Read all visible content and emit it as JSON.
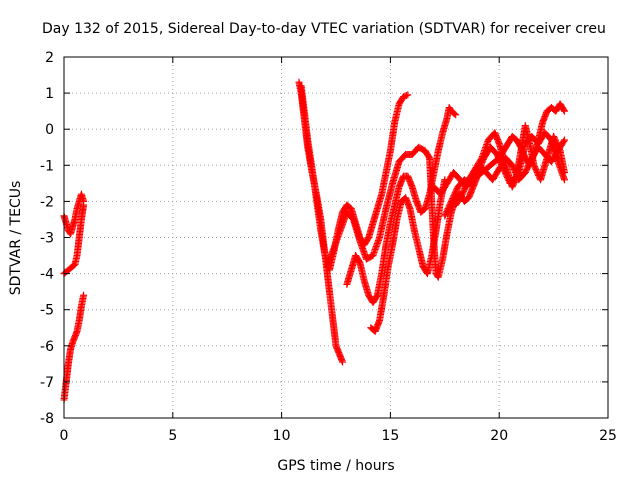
{
  "chart_data": {
    "type": "scatter",
    "title": "Day 132 of 2015, Sidereal Day-to-day VTEC variation (SDTVAR) for receiver creu",
    "xlabel": "GPS time / hours",
    "ylabel": "SDTVAR / TECUs",
    "xlim": [
      0,
      25
    ],
    "ylim": [
      -8,
      2
    ],
    "xticks": [
      "0",
      "5",
      "10",
      "15",
      "20",
      "25"
    ],
    "yticks": [
      "-8",
      "-7",
      "-6",
      "-5",
      "-4",
      "-3",
      "-2",
      "-1",
      "0",
      "1",
      "2"
    ],
    "grid": true,
    "marker": "+",
    "color": "#ff0000",
    "series": [
      {
        "points": [
          [
            0.0,
            -2.4
          ],
          [
            0.1,
            -2.6
          ],
          [
            0.2,
            -2.8
          ],
          [
            0.3,
            -2.9
          ],
          [
            0.4,
            -2.7
          ],
          [
            0.5,
            -2.5
          ],
          [
            0.6,
            -2.2
          ],
          [
            0.7,
            -2.0
          ],
          [
            0.8,
            -1.8
          ],
          [
            0.9,
            -2.0
          ]
        ]
      },
      {
        "points": [
          [
            0.0,
            -4.0
          ],
          [
            0.1,
            -3.95
          ],
          [
            0.2,
            -3.9
          ],
          [
            0.3,
            -3.85
          ],
          [
            0.4,
            -3.8
          ],
          [
            0.5,
            -3.75
          ],
          [
            0.6,
            -3.5
          ],
          [
            0.7,
            -3.0
          ],
          [
            0.8,
            -2.5
          ],
          [
            0.9,
            -2.1
          ]
        ]
      },
      {
        "points": [
          [
            0.0,
            -7.5
          ],
          [
            0.1,
            -7.0
          ],
          [
            0.2,
            -6.5
          ],
          [
            0.3,
            -6.1
          ],
          [
            0.4,
            -5.9
          ],
          [
            0.5,
            -5.75
          ],
          [
            0.6,
            -5.6
          ],
          [
            0.7,
            -5.3
          ],
          [
            0.8,
            -4.9
          ],
          [
            0.9,
            -4.6
          ]
        ]
      },
      {
        "points": [
          [
            10.8,
            1.3
          ],
          [
            10.9,
            1.0
          ],
          [
            11.0,
            0.5
          ],
          [
            11.1,
            0.0
          ],
          [
            11.2,
            -0.5
          ],
          [
            11.4,
            -1.2
          ],
          [
            11.6,
            -1.8
          ],
          [
            11.8,
            -2.5
          ],
          [
            12.0,
            -3.5
          ],
          [
            12.1,
            -4.0
          ],
          [
            12.2,
            -4.5
          ],
          [
            12.3,
            -5.0
          ],
          [
            12.4,
            -5.5
          ],
          [
            12.5,
            -6.0
          ],
          [
            12.7,
            -6.3
          ],
          [
            12.8,
            -6.45
          ]
        ]
      },
      {
        "points": [
          [
            10.9,
            1.2
          ],
          [
            11.2,
            -0.3
          ],
          [
            11.5,
            -1.5
          ],
          [
            11.8,
            -2.8
          ],
          [
            12.0,
            -3.5
          ],
          [
            12.2,
            -3.9
          ],
          [
            12.4,
            -3.4
          ],
          [
            12.6,
            -2.8
          ],
          [
            12.8,
            -2.3
          ],
          [
            13.0,
            -2.1
          ],
          [
            13.2,
            -2.2
          ],
          [
            13.4,
            -2.6
          ],
          [
            13.6,
            -3.0
          ],
          [
            13.8,
            -3.2
          ],
          [
            14.0,
            -3.0
          ],
          [
            14.2,
            -2.6
          ],
          [
            14.4,
            -2.2
          ],
          [
            14.6,
            -1.8
          ],
          [
            14.8,
            -1.2
          ],
          [
            15.0,
            -0.6
          ],
          [
            15.2,
            0.2
          ],
          [
            15.4,
            0.7
          ],
          [
            15.6,
            0.9
          ],
          [
            15.8,
            0.95
          ]
        ]
      },
      {
        "points": [
          [
            12.1,
            -3.8
          ],
          [
            12.4,
            -3.3
          ],
          [
            12.7,
            -2.8
          ],
          [
            13.0,
            -2.3
          ],
          [
            13.3,
            -2.5
          ],
          [
            13.6,
            -3.1
          ],
          [
            13.9,
            -3.6
          ],
          [
            14.2,
            -3.5
          ],
          [
            14.5,
            -3.0
          ],
          [
            14.8,
            -2.2
          ],
          [
            15.1,
            -1.5
          ],
          [
            15.4,
            -0.9
          ],
          [
            15.7,
            -0.7
          ],
          [
            16.0,
            -0.7
          ],
          [
            16.3,
            -0.5
          ],
          [
            16.6,
            -0.6
          ],
          [
            16.8,
            -0.8
          ]
        ]
      },
      {
        "points": [
          [
            13.0,
            -4.3
          ],
          [
            13.2,
            -3.9
          ],
          [
            13.4,
            -3.5
          ],
          [
            13.6,
            -3.7
          ],
          [
            13.8,
            -4.2
          ],
          [
            14.0,
            -4.6
          ],
          [
            14.2,
            -4.8
          ],
          [
            14.4,
            -4.6
          ],
          [
            14.6,
            -4.0
          ],
          [
            14.8,
            -3.2
          ],
          [
            15.0,
            -2.6
          ],
          [
            15.2,
            -2.1
          ],
          [
            15.4,
            -1.6
          ],
          [
            15.6,
            -1.3
          ],
          [
            15.8,
            -1.3
          ],
          [
            16.0,
            -1.6
          ],
          [
            16.2,
            -2.0
          ],
          [
            16.4,
            -2.3
          ],
          [
            16.6,
            -2.2
          ],
          [
            16.8,
            -1.8
          ],
          [
            17.0,
            -1.2
          ],
          [
            17.2,
            -0.6
          ],
          [
            17.4,
            -0.1
          ],
          [
            17.6,
            0.3
          ],
          [
            17.7,
            0.6
          ],
          [
            17.8,
            0.5
          ],
          [
            18.0,
            0.4
          ]
        ]
      },
      {
        "points": [
          [
            14.1,
            -5.5
          ],
          [
            14.3,
            -5.6
          ],
          [
            14.5,
            -5.3
          ],
          [
            14.7,
            -4.6
          ],
          [
            14.9,
            -3.8
          ],
          [
            15.1,
            -3.2
          ],
          [
            15.3,
            -2.5
          ],
          [
            15.5,
            -2.0
          ],
          [
            15.7,
            -1.9
          ],
          [
            15.9,
            -2.2
          ],
          [
            16.1,
            -2.8
          ],
          [
            16.3,
            -3.3
          ],
          [
            16.5,
            -3.8
          ],
          [
            16.7,
            -4.0
          ],
          [
            16.9,
            -3.5
          ],
          [
            17.1,
            -2.8
          ],
          [
            17.3,
            -2.0
          ],
          [
            17.5,
            -1.4
          ]
        ]
      },
      {
        "points": [
          [
            16.8,
            -0.8
          ],
          [
            16.9,
            -2.0
          ],
          [
            17.0,
            -3.2
          ],
          [
            17.1,
            -4.0
          ],
          [
            17.2,
            -4.1
          ],
          [
            17.4,
            -3.6
          ],
          [
            17.6,
            -2.9
          ],
          [
            17.8,
            -2.3
          ],
          [
            18.0,
            -1.9
          ],
          [
            18.2,
            -1.8
          ],
          [
            18.4,
            -2.0
          ],
          [
            18.6,
            -1.9
          ],
          [
            18.8,
            -1.6
          ],
          [
            19.0,
            -1.3
          ],
          [
            19.2,
            -1.2
          ],
          [
            19.4,
            -1.1
          ],
          [
            19.6,
            -1.0
          ],
          [
            19.8,
            -0.9
          ],
          [
            20.0,
            -0.8
          ],
          [
            20.2,
            -0.6
          ],
          [
            20.4,
            -0.4
          ],
          [
            20.6,
            -0.2
          ],
          [
            20.8,
            -0.3
          ],
          [
            21.0,
            -0.5
          ],
          [
            21.2,
            -0.8
          ],
          [
            21.4,
            -1.0
          ],
          [
            21.6,
            -0.7
          ],
          [
            21.8,
            -0.3
          ],
          [
            22.0,
            0.2
          ],
          [
            22.2,
            0.5
          ],
          [
            22.4,
            0.6
          ],
          [
            22.6,
            0.5
          ],
          [
            22.8,
            0.7
          ],
          [
            23.0,
            0.5
          ]
        ]
      },
      {
        "points": [
          [
            17.0,
            -1.6
          ],
          [
            17.3,
            -1.8
          ],
          [
            17.6,
            -1.5
          ],
          [
            17.9,
            -1.2
          ],
          [
            18.2,
            -1.4
          ],
          [
            18.5,
            -1.6
          ],
          [
            18.8,
            -1.3
          ],
          [
            19.1,
            -1.0
          ],
          [
            19.4,
            -1.2
          ],
          [
            19.7,
            -1.4
          ],
          [
            20.0,
            -1.1
          ],
          [
            20.3,
            -0.8
          ],
          [
            20.6,
            -1.0
          ],
          [
            20.9,
            -1.4
          ],
          [
            21.2,
            -1.2
          ],
          [
            21.5,
            -0.8
          ],
          [
            21.8,
            -0.5
          ],
          [
            22.1,
            -0.7
          ],
          [
            22.4,
            -0.9
          ],
          [
            22.7,
            -0.6
          ],
          [
            23.0,
            -0.3
          ]
        ]
      },
      {
        "points": [
          [
            17.5,
            -2.4
          ],
          [
            17.8,
            -2.0
          ],
          [
            18.1,
            -1.6
          ],
          [
            18.4,
            -1.4
          ],
          [
            18.7,
            -1.5
          ],
          [
            19.0,
            -1.2
          ],
          [
            19.3,
            -0.8
          ],
          [
            19.6,
            -0.5
          ],
          [
            19.9,
            -0.7
          ],
          [
            20.2,
            -1.1
          ],
          [
            20.5,
            -1.5
          ],
          [
            20.8,
            -1.3
          ],
          [
            21.0,
            -0.6
          ],
          [
            21.2,
            0.1
          ],
          [
            21.4,
            -0.4
          ],
          [
            21.6,
            -1.0
          ],
          [
            21.9,
            -1.4
          ],
          [
            22.2,
            -0.8
          ],
          [
            22.5,
            -0.2
          ],
          [
            22.8,
            -0.6
          ],
          [
            23.0,
            -1.2
          ]
        ]
      },
      {
        "points": [
          [
            18.0,
            -2.1
          ],
          [
            18.3,
            -1.8
          ],
          [
            18.6,
            -1.4
          ],
          [
            18.9,
            -1.1
          ],
          [
            19.2,
            -0.8
          ],
          [
            19.5,
            -0.3
          ],
          [
            19.8,
            -0.1
          ],
          [
            20.0,
            -0.4
          ],
          [
            20.3,
            -1.0
          ],
          [
            20.6,
            -1.6
          ],
          [
            20.9,
            -1.2
          ],
          [
            21.2,
            -0.4
          ],
          [
            21.5,
            -0.2
          ],
          [
            21.8,
            -0.4
          ],
          [
            22.1,
            -0.1
          ],
          [
            22.4,
            -0.3
          ],
          [
            22.7,
            -0.9
          ],
          [
            23.0,
            -1.4
          ]
        ]
      }
    ]
  }
}
